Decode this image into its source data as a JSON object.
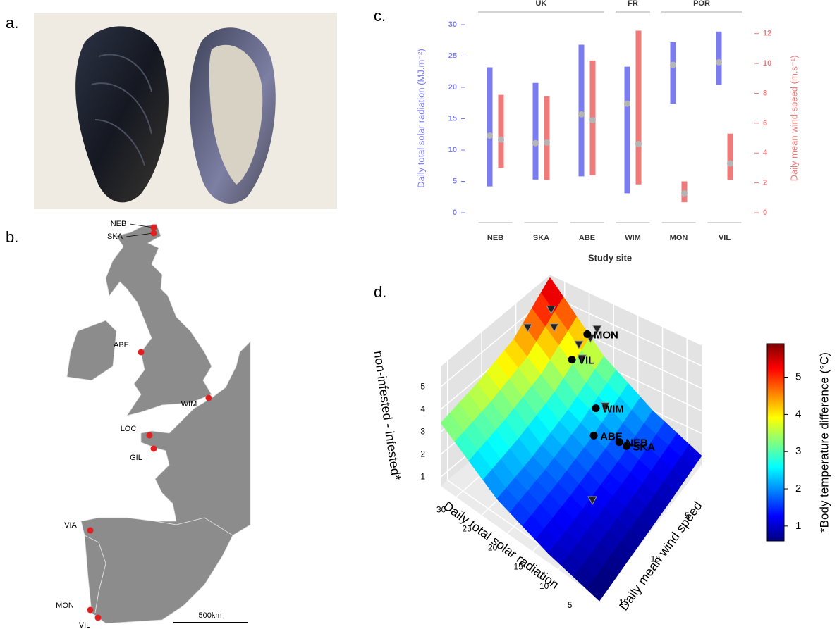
{
  "panel_labels": [
    "a.",
    "b.",
    "c.",
    "d."
  ],
  "map": {
    "sites": [
      "NEB",
      "SKA",
      "ABE",
      "WIM",
      "LOC",
      "GIL",
      "VIA",
      "MON",
      "VIL"
    ],
    "site_color": "#e02020",
    "land_color": "#8c8c8c",
    "scale_label": "500km"
  },
  "chart_data": [
    {
      "type": "range",
      "xlabel": "Study site",
      "ylabel": "Daily total solar radiation (MJ.m⁻²)",
      "y2label": "Daily mean wind speed (m.s⁻¹)",
      "categories": [
        "NEB",
        "SKA",
        "ABE",
        "WIM",
        "MON",
        "VIL"
      ],
      "groups": [
        {
          "label": "UK",
          "size": 3
        },
        {
          "label": "FR",
          "size": 1
        },
        {
          "label": "POR",
          "size": 2
        }
      ],
      "mean_color": "#b4b4b4",
      "series": [
        {
          "color": "#7b7bf2",
          "axis": "y",
          "low": [
            4.2,
            5.3,
            5.8,
            3.1,
            17.4,
            20.4
          ],
          "high": [
            23.2,
            20.7,
            26.8,
            23.3,
            27.2,
            28.9
          ],
          "mean": [
            12.3,
            11.1,
            15.7,
            17.4,
            23.6,
            24.0
          ]
        },
        {
          "color": "#f07a7a",
          "axis": "y2",
          "low": [
            3.0,
            2.2,
            2.5,
            1.9,
            0.7,
            2.2
          ],
          "high": [
            7.9,
            7.8,
            10.2,
            12.2,
            2.1,
            5.3
          ],
          "mean": [
            4.9,
            4.7,
            6.2,
            4.6,
            1.3,
            3.3
          ]
        }
      ],
      "ylim": [
        0,
        30
      ],
      "yticks": [
        0,
        5,
        10,
        15,
        20,
        25,
        30
      ],
      "y2lim": [
        0,
        12.6
      ],
      "y2ticks": [
        0,
        2,
        4,
        6,
        8,
        10,
        12
      ]
    },
    {
      "type": "surface3d",
      "xlabel": "Daily total solar radiation",
      "ylabel": "Daily mean wind speed",
      "zlabel": "non-infested - infested*",
      "colorbar_label": "*Body temperature difference (°C)",
      "xlim": [
        2,
        33
      ],
      "xticks": [
        5,
        10,
        15,
        20,
        25,
        30
      ],
      "ylim": [
        0,
        16
      ],
      "yticks": [
        5,
        10,
        15
      ],
      "zlim": [
        0.6,
        5.9
      ],
      "zticks": [
        1,
        2,
        3,
        4,
        5
      ],
      "colormap": [
        "#00007f",
        "#0000ff",
        "#0080ff",
        "#00ffff",
        "#80ff80",
        "#ffff00",
        "#ff8000",
        "#ff0000",
        "#7f0000"
      ],
      "surface": {
        "x": [
          2,
          12,
          22,
          33
        ],
        "y": [
          0,
          5.33,
          10.67,
          16
        ],
        "z": [
          [
            1.0,
            0.8,
            0.65,
            0.5
          ],
          [
            2.0,
            1.5,
            1.2,
            1.0
          ],
          [
            3.4,
            2.6,
            2.1,
            1.8
          ],
          [
            5.8,
            4.4,
            3.8,
            3.4
          ]
        ]
      },
      "circles": [
        {
          "label": "MON",
          "x": 23.6,
          "y": 1.3,
          "z": 4.6
        },
        {
          "label": "VIL",
          "x": 24.0,
          "y": 3.3,
          "z": 4.0
        },
        {
          "label": "WIM",
          "x": 17.4,
          "y": 4.6,
          "z": 3.0
        },
        {
          "label": "NEB",
          "x": 12.3,
          "y": 4.9,
          "z": 2.2
        },
        {
          "label": "SKA",
          "x": 11.1,
          "y": 4.7,
          "z": 2.1
        },
        {
          "label": "ABE",
          "x": 15.7,
          "y": 6.2,
          "z": 2.5
        }
      ],
      "triangles": [
        {
          "x": 30,
          "y": 2,
          "z": 5.2
        },
        {
          "x": 28,
          "y": 3,
          "z": 4.9
        },
        {
          "x": 32,
          "y": 4,
          "z": 4.7
        },
        {
          "x": 22,
          "y": 1,
          "z": 4.9
        },
        {
          "x": 22,
          "y": 2,
          "z": 4.8
        },
        {
          "x": 23,
          "y": 3,
          "z": 4.7
        },
        {
          "x": 21,
          "y": 4,
          "z": 4.6
        },
        {
          "x": 15,
          "y": 5,
          "z": 3.5
        },
        {
          "x": 11,
          "y": 10,
          "z": 1.5
        }
      ]
    }
  ]
}
